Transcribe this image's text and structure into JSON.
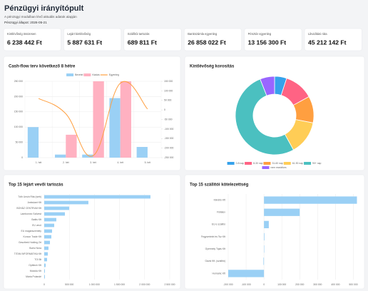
{
  "header": {
    "title": "Pénzügyi irányítópult",
    "subtitle": "A pénzügyi modulban lévő aktuális adatok alapján",
    "status": "Pénzügyi állapot: 2026-05-21"
  },
  "kpis": [
    {
      "label": "Kintlévőség összesen",
      "value": "6 238 442 Ft"
    },
    {
      "label": "Lejárt kintlévőség",
      "value": "5 887 631 Ft"
    },
    {
      "label": "Szállítói tartozás",
      "value": "689 811 Ft"
    },
    {
      "label": "Bankszámla egyenleg",
      "value": "26 858 022 Ft"
    },
    {
      "label": "Pénztár egyenleg",
      "value": "13 156 300 Ft"
    },
    {
      "label": "Likviditási ráta",
      "value": "45 212 142 Ft"
    }
  ],
  "chart_data": [
    {
      "type": "bar",
      "title": "Cash-flow terv következő 8 hétre",
      "categories": [
        "1. hét",
        "2. hét",
        "3. hét",
        "4. hét",
        "5. hét"
      ],
      "series": [
        {
          "name": "Bevétel",
          "color": "#9ad0f5",
          "values": [
            100000,
            10000,
            10000,
            195000,
            35000
          ]
        },
        {
          "name": "Kiadás",
          "color": "#ffb1c1",
          "values": [
            0,
            75000,
            250000,
            250000,
            0
          ]
        },
        {
          "name": "Egyenleg",
          "color": "#ff9f40",
          "type": "line",
          "axis": "y2",
          "values": [
            60000,
            -20000,
            -240000,
            140000,
            5000
          ]
        }
      ],
      "ylim": [
        0,
        250000
      ],
      "yticks": [
        0,
        {
          "value": 50000,
          "label": "50 000"
        },
        {
          "value": 100000,
          "label": "100 000"
        },
        {
          "value": 150000,
          "label": "150 000"
        },
        {
          "value": 200000,
          "label": "200 000"
        },
        {
          "value": 250000,
          "label": "250 000"
        }
      ],
      "y2lim": [
        -250000,
        150000
      ],
      "y2ticks": [
        {
          "value": -250000,
          "label": "-250 000"
        },
        {
          "value": -200000,
          "label": "-200 000"
        },
        {
          "value": -150000,
          "label": "-150 000"
        },
        {
          "value": -100000,
          "label": "-100 000"
        },
        {
          "value": -50000,
          "label": "-50 000"
        },
        0,
        {
          "value": 50000,
          "label": "50 000"
        },
        {
          "value": 100000,
          "label": "100 000"
        },
        {
          "value": 150000,
          "label": "150 000"
        }
      ],
      "grid": true
    },
    {
      "type": "pie",
      "title": "Kintlévőség korosítás",
      "categories": [
        "0-8 nap",
        "8-30 nap",
        "31-60 nap",
        "61-90 nap",
        "90+ nap",
        "nem esedékes"
      ],
      "values": [
        5,
        12,
        11,
        14,
        52,
        6
      ],
      "colors": [
        "#36a2eb",
        "#ff6384",
        "#ff9f40",
        "#ffcd56",
        "#4bc0c0",
        "#9966ff"
      ],
      "donut": true
    },
    {
      "type": "bar",
      "horizontal": true,
      "title": "Top 15 lejárt vevői tartozás",
      "categories": [
        "Tóth Unsin Rita (web)",
        "Ambulant Kft",
        "BOHÁZ CENTRUM Kft",
        "Lamborvez Szilvest",
        "Battis Kft",
        "EU vevő",
        "EU magánszemély",
        "Koncor Trade Kft",
        "Geszttrek Holding Zrt",
        "Borisi Nóra",
        "TITAN INFORMATIKA Kft",
        "TOI Bt",
        "Optitech Kft",
        "Modola Kft",
        "Mária Polandé"
      ],
      "values": [
        2116000,
        880000,
        497000,
        412000,
        241000,
        199000,
        156000,
        142000,
        114000,
        85000,
        71000,
        57000,
        28000,
        14000,
        14000
      ],
      "color": "#9ad0f5",
      "xlim": [
        0,
        2500000
      ],
      "xticks": [
        0,
        {
          "value": 500000,
          "label": "500 000"
        },
        {
          "value": 1000000,
          "label": "1 000 000"
        },
        {
          "value": 1500000,
          "label": "1 500 000"
        },
        {
          "value": 2000000,
          "label": "2 000 000"
        },
        {
          "value": 2500000,
          "label": "2 500 000"
        }
      ],
      "grid": true
    },
    {
      "type": "bar",
      "horizontal": true,
      "title": "Top 15 szállítói kötelezettség",
      "categories": [
        "Kiindító Kft",
        "Füllatex",
        "EU-s szállító",
        "Fegyvertelel és Tsz Kft",
        "Gyermely Tojás Kft",
        "Gázsi Kft. (szállító)",
        "Humanic Kft"
      ],
      "values": [
        520000,
        200000,
        27000,
        3000,
        2000,
        -3000,
        -200000
      ],
      "color": "#9ad0f5",
      "xlim": [
        -200000,
        550000
      ],
      "xticks": [
        {
          "value": -200000,
          "label": "-200 000"
        },
        {
          "value": -100000,
          "label": "-100 000"
        },
        0,
        {
          "value": 100000,
          "label": "100 000"
        },
        {
          "value": 200000,
          "label": "200 000"
        },
        {
          "value": 300000,
          "label": "300 000"
        },
        {
          "value": 400000,
          "label": "400 000"
        },
        {
          "value": 500000,
          "label": "500 000"
        }
      ],
      "grid": true
    }
  ]
}
